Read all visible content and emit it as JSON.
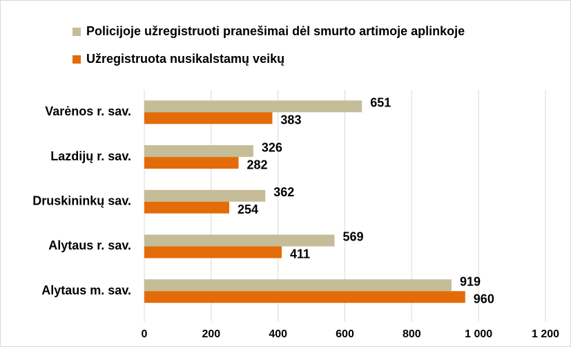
{
  "chart_data": {
    "type": "bar",
    "orientation": "horizontal",
    "categories": [
      "Varėnos r. sav.",
      "Lazdijų r. sav.",
      "Druskininkų sav.",
      "Alytaus r. sav.",
      "Alytaus m. sav."
    ],
    "series": [
      {
        "name": "Policijoje užregistruoti pranešimai dėl smurto artimoje aplinkoje",
        "color": "#c4bd97",
        "values": [
          651,
          326,
          362,
          569,
          919
        ]
      },
      {
        "name": "Užregistruota nusikalstamų veikų",
        "color": "#e36c09",
        "values": [
          383,
          282,
          254,
          411,
          960
        ]
      }
    ],
    "xlim": [
      0,
      1200
    ],
    "xticks": [
      0,
      200,
      400,
      600,
      800,
      {
        "value": 1000,
        "label": "1 000"
      },
      {
        "value": 1200,
        "label": "1 200"
      }
    ],
    "grid": true
  }
}
